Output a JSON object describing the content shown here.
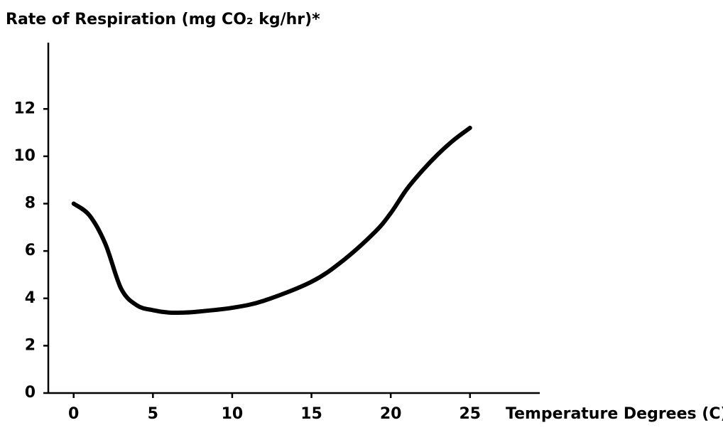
{
  "chart_data": {
    "type": "line",
    "title": "Rate of Respiration (mg CO₂ kg/hr)*",
    "x_label": "Temperature Degrees (C)",
    "x": [
      0,
      1,
      2,
      3,
      4,
      5,
      6,
      7,
      8,
      10,
      12,
      15,
      17,
      19,
      20,
      21,
      22,
      23,
      24,
      25
    ],
    "series": [
      {
        "name": "Rate of Respiration",
        "color": "#000000",
        "values": [
          8.0,
          7.5,
          6.3,
          4.4,
          3.7,
          3.5,
          3.4,
          3.4,
          3.45,
          3.6,
          3.9,
          4.7,
          5.6,
          6.8,
          7.6,
          8.6,
          9.4,
          10.1,
          10.7,
          11.2
        ]
      }
    ],
    "xlim": [
      -1.6,
      29.4
    ],
    "xticks": [
      0,
      5,
      10,
      15,
      20,
      25
    ],
    "ylim": [
      0,
      14.8
    ],
    "yticks": [
      0,
      2,
      4,
      6,
      8,
      10,
      12
    ]
  }
}
